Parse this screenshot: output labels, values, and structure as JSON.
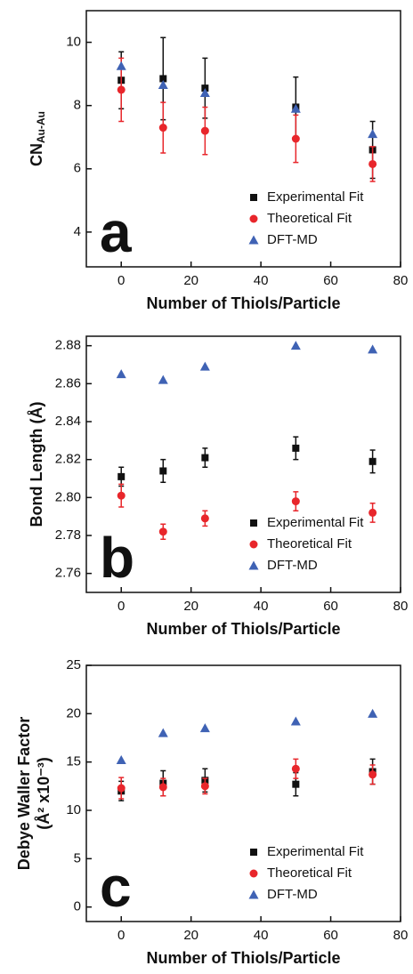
{
  "chart_data": [
    {
      "type": "scatter",
      "annotation": "a",
      "xlabel": "Number of Thiols/Particle",
      "ylabel": "CN",
      "ylabel_sub": "Au-Au",
      "xlim": [
        -10,
        80
      ],
      "xticks": [
        0,
        20,
        40,
        60,
        80
      ],
      "ylim": [
        2.9,
        11
      ],
      "yticks": [
        4,
        6,
        8,
        10
      ],
      "x": [
        0,
        12,
        24,
        50,
        72
      ],
      "series": [
        {
          "name": "Experimental Fit",
          "color": "#111111",
          "marker": "square",
          "values": [
            8.8,
            8.85,
            8.55,
            7.95,
            6.6
          ],
          "errors": [
            0.9,
            1.3,
            0.95,
            0.95,
            0.9
          ]
        },
        {
          "name": "Theoretical Fit",
          "color": "#e8262b",
          "marker": "circle",
          "values": [
            8.5,
            7.3,
            7.2,
            6.95,
            6.15
          ],
          "errors": [
            1.0,
            0.8,
            0.75,
            0.75,
            0.55
          ]
        },
        {
          "name": "DFT-MD",
          "color": "#3f62b4",
          "marker": "triangle",
          "values": [
            9.25,
            8.65,
            8.4,
            7.9,
            7.1
          ]
        }
      ]
    },
    {
      "type": "scatter",
      "annotation": "b",
      "xlabel": "Number of Thiols/Particle",
      "ylabel": "Bond Length (Å)",
      "xlim": [
        -10,
        80
      ],
      "xticks": [
        0,
        20,
        40,
        60,
        80
      ],
      "ylim": [
        2.75,
        2.885
      ],
      "yticks": [
        2.76,
        2.78,
        {
          "value": 2.8,
          "label": "2.80"
        },
        2.82,
        2.84,
        2.86,
        2.88
      ],
      "x": [
        0,
        12,
        24,
        50,
        72
      ],
      "series": [
        {
          "name": "Experimental Fit",
          "color": "#111111",
          "marker": "square",
          "values": [
            2.811,
            2.814,
            2.821,
            2.826,
            2.819
          ],
          "errors": [
            0.005,
            0.006,
            0.005,
            0.006,
            0.006
          ]
        },
        {
          "name": "Theoretical Fit",
          "color": "#e8262b",
          "marker": "circle",
          "values": [
            2.801,
            2.782,
            2.789,
            2.798,
            2.792
          ],
          "errors": [
            0.006,
            0.004,
            0.004,
            0.005,
            0.005
          ]
        },
        {
          "name": "DFT-MD",
          "color": "#3f62b4",
          "marker": "triangle",
          "values": [
            2.865,
            2.862,
            2.869,
            2.88,
            2.878
          ]
        }
      ]
    },
    {
      "type": "scatter",
      "annotation": "c",
      "xlabel": "Number of Thiols/Particle",
      "ylabel": "Debye Waller Factor",
      "ylabel_line2": "(Å² x10⁻³)",
      "xlim": [
        -10,
        80
      ],
      "xticks": [
        0,
        20,
        40,
        60,
        80
      ],
      "ylim": [
        -1.5,
        25
      ],
      "yticks": [
        0,
        5,
        10,
        15,
        20,
        25
      ],
      "x": [
        0,
        12,
        24,
        50,
        72
      ],
      "series": [
        {
          "name": "Experimental Fit",
          "color": "#111111",
          "marker": "square",
          "values": [
            12,
            12.8,
            13.1,
            12.7,
            14
          ],
          "errors": [
            1,
            1.3,
            1.2,
            1.2,
            1.3
          ]
        },
        {
          "name": "Theoretical Fit",
          "color": "#e8262b",
          "marker": "circle",
          "values": [
            12.3,
            12.4,
            12.5,
            14.3,
            13.7
          ],
          "errors": [
            1.1,
            0.9,
            0.8,
            1.0,
            1.0
          ]
        },
        {
          "name": "DFT-MD",
          "color": "#3f62b4",
          "marker": "triangle",
          "values": [
            15.2,
            18,
            18.5,
            19.2,
            20
          ]
        }
      ]
    }
  ]
}
